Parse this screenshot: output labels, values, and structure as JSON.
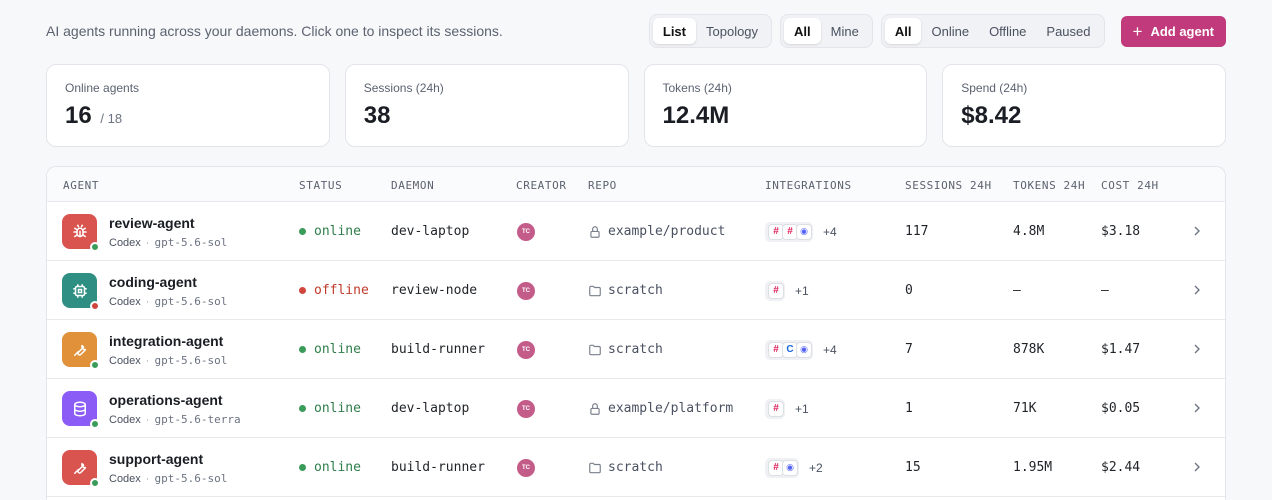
{
  "header": {
    "subtitle": "AI agents running across your daemons. Click one to inspect its sessions.",
    "view_toggle": [
      {
        "label": "List",
        "active": true
      },
      {
        "label": "Topology",
        "active": false
      }
    ],
    "owner_toggle": [
      {
        "label": "All",
        "active": true
      },
      {
        "label": "Mine",
        "active": false
      }
    ],
    "status_filter": [
      {
        "label": "All",
        "active": true
      },
      {
        "label": "Online",
        "active": false
      },
      {
        "label": "Offline",
        "active": false
      },
      {
        "label": "Paused",
        "active": false
      }
    ],
    "add_button": "Add agent"
  },
  "stats": [
    {
      "label": "Online agents",
      "value": "16",
      "suffix": "/ 18"
    },
    {
      "label": "Sessions (24h)",
      "value": "38",
      "suffix": ""
    },
    {
      "label": "Tokens (24h)",
      "value": "12.4M",
      "suffix": ""
    },
    {
      "label": "Spend (24h)",
      "value": "$8.42",
      "suffix": ""
    }
  ],
  "table": {
    "columns": [
      "AGENT",
      "STATUS",
      "DAEMON",
      "CREATOR",
      "REPO",
      "INTEGRATIONS",
      "SESSIONS 24H",
      "TOKENS 24H",
      "COST 24H"
    ],
    "rows": [
      {
        "name": "review-agent",
        "provider": "Codex",
        "model": "gpt-5.6-sol",
        "icon": "bug-icon",
        "color": "#d9534f",
        "status": "online",
        "daemon": "dev-laptop",
        "creator": "TC",
        "repo_icon": "lock-icon",
        "repo": "example/product",
        "integrations": [
          "slack",
          "slack",
          "discord"
        ],
        "more": "+4",
        "sessions": "117",
        "tokens": "4.8M",
        "cost": "$3.18"
      },
      {
        "name": "coding-agent",
        "provider": "Codex",
        "model": "gpt-5.6-sol",
        "icon": "chip-icon",
        "color": "#2f8f83",
        "status": "offline",
        "daemon": "review-node",
        "creator": "TC",
        "repo_icon": "folder-icon",
        "repo": "scratch",
        "integrations": [
          "slack"
        ],
        "more": "+1",
        "sessions": "0",
        "tokens": "—",
        "cost": "—"
      },
      {
        "name": "integration-agent",
        "provider": "Codex",
        "model": "gpt-5.6-sol",
        "icon": "wrench-icon",
        "color": "#e0913a",
        "status": "online",
        "daemon": "build-runner",
        "creator": "TC",
        "repo_icon": "folder-icon",
        "repo": "scratch",
        "integrations": [
          "slack",
          "confluence",
          "discord"
        ],
        "more": "+4",
        "sessions": "7",
        "tokens": "878K",
        "cost": "$1.47"
      },
      {
        "name": "operations-agent",
        "provider": "Codex",
        "model": "gpt-5.6-terra",
        "icon": "database-icon",
        "color": "#8b5cf6",
        "status": "online",
        "daemon": "dev-laptop",
        "creator": "TC",
        "repo_icon": "lock-icon",
        "repo": "example/platform",
        "integrations": [
          "slack"
        ],
        "more": "+1",
        "sessions": "1",
        "tokens": "71K",
        "cost": "$0.05"
      },
      {
        "name": "support-agent",
        "provider": "Codex",
        "model": "gpt-5.6-sol",
        "icon": "wrench-icon",
        "color": "#d9534f",
        "status": "online",
        "daemon": "build-runner",
        "creator": "TC",
        "repo_icon": "folder-icon",
        "repo": "scratch",
        "integrations": [
          "slack",
          "discord"
        ],
        "more": "+2",
        "sessions": "15",
        "tokens": "1.95M",
        "cost": "$2.44"
      }
    ]
  },
  "colors": {
    "online": "#3b9b5a",
    "offline": "#d0463c",
    "online_text": "#2e7d4a",
    "offline_text": "#c0392b",
    "accent": "#c13b7c"
  }
}
